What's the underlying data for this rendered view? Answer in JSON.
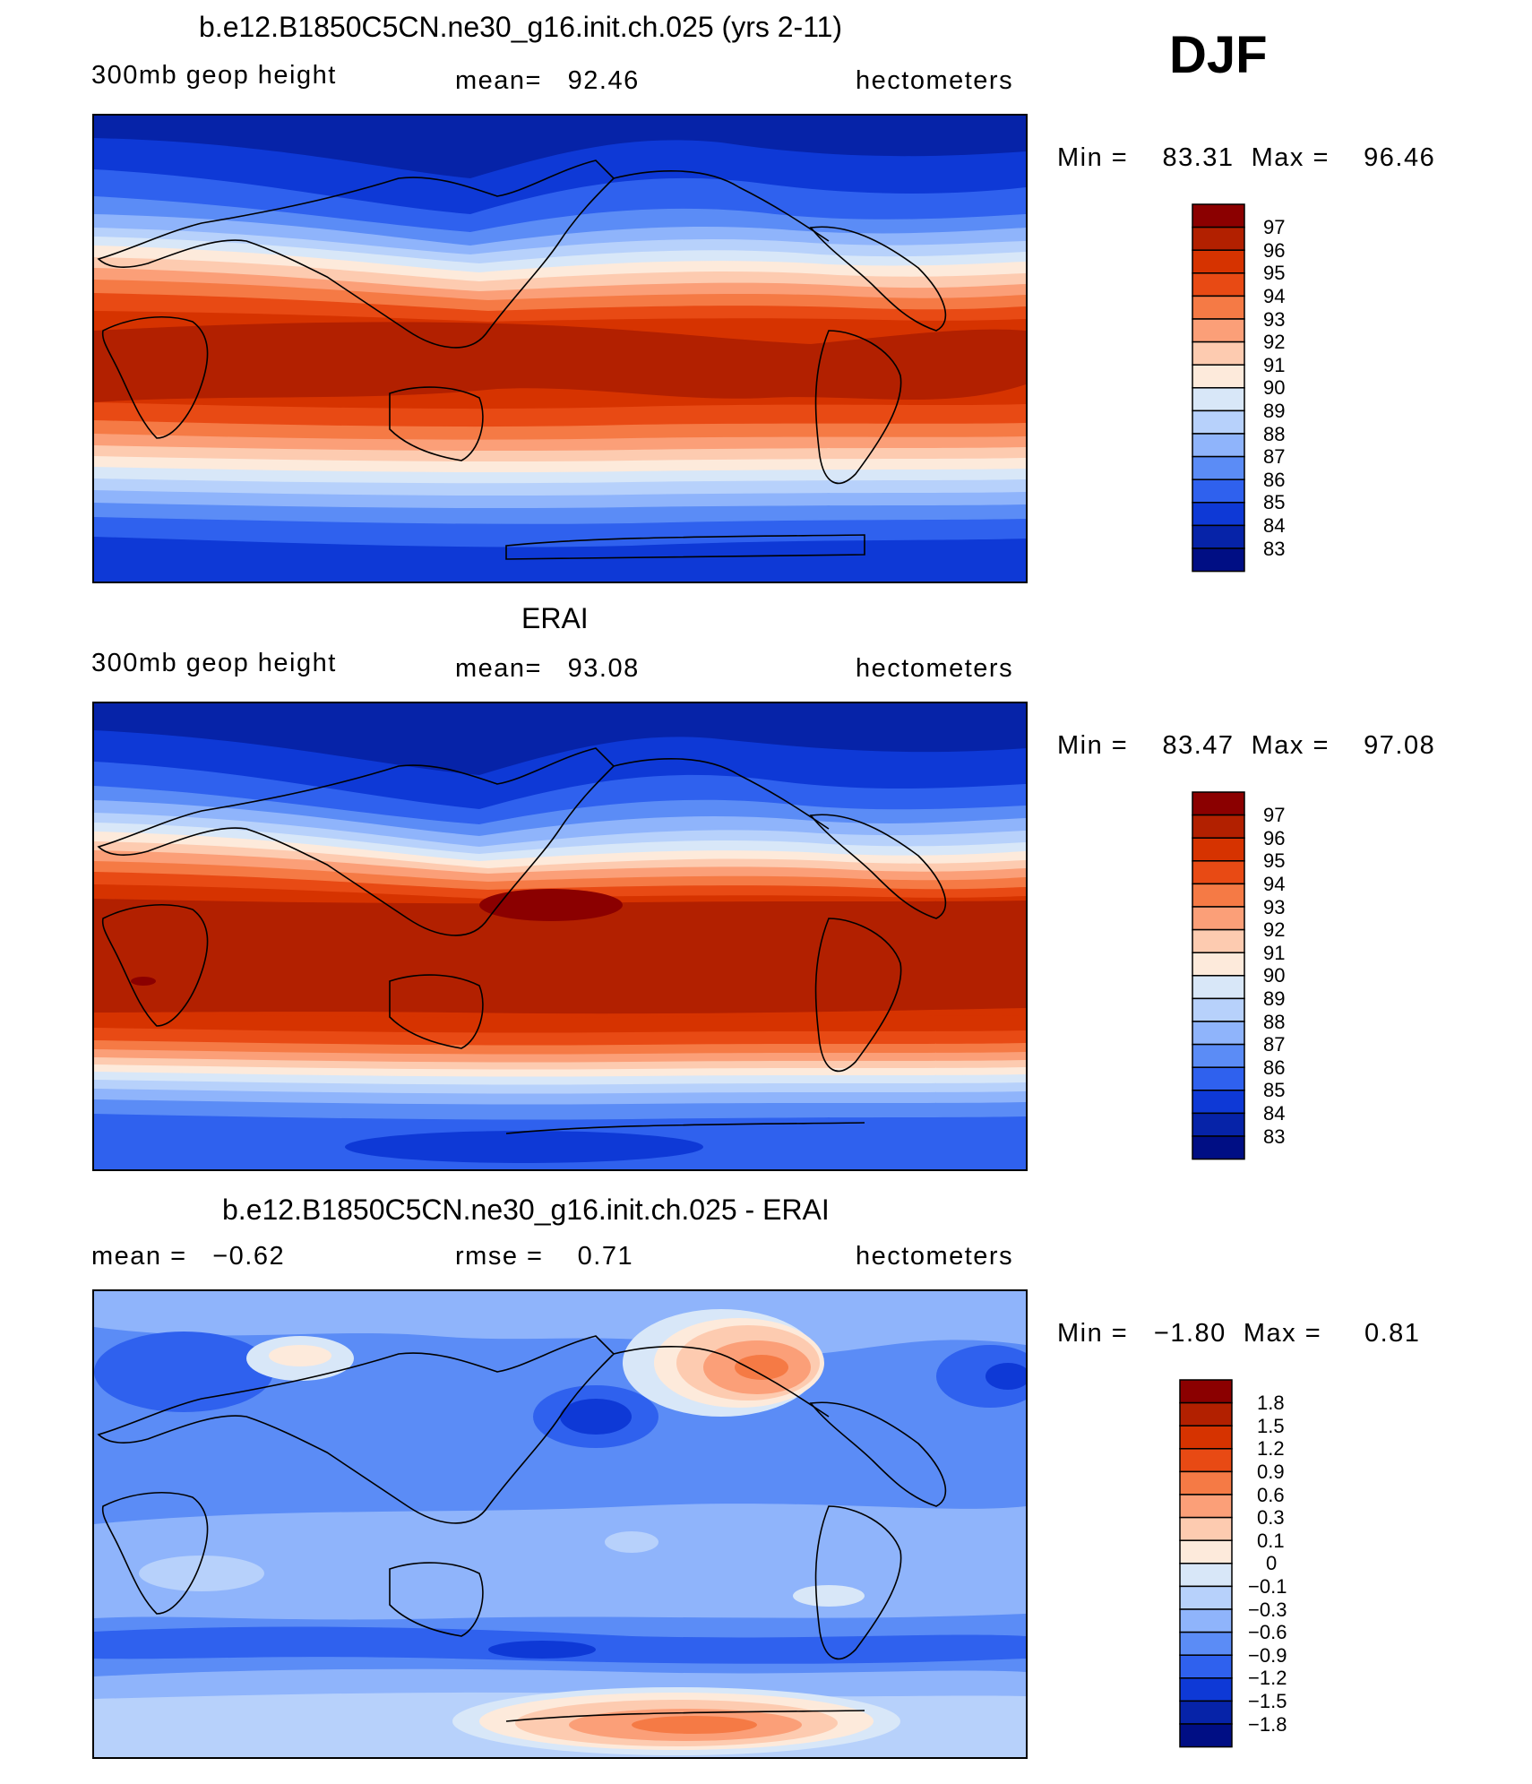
{
  "season": "DJF",
  "panels": [
    {
      "id": "model",
      "title": "b.e12.B1850C5CN.ne30_g16.init.ch.025 (yrs 2-11)",
      "left_label": "300mb geop height",
      "center_label": "mean=   92.46",
      "right_label": "hectometers",
      "minmax": "Min =    83.31  Max =    96.46",
      "colorbar_labels": [
        "97",
        "96",
        "95",
        "94",
        "93",
        "92",
        "91",
        "90",
        "89",
        "88",
        "87",
        "86",
        "85",
        "84",
        "83"
      ]
    },
    {
      "id": "obs",
      "title": "ERAI",
      "left_label": "300mb geop height",
      "center_label": "mean=   93.08",
      "right_label": "hectometers",
      "minmax": "Min =    83.47  Max =    97.08",
      "colorbar_labels": [
        "97",
        "96",
        "95",
        "94",
        "93",
        "92",
        "91",
        "90",
        "89",
        "88",
        "87",
        "86",
        "85",
        "84",
        "83"
      ]
    },
    {
      "id": "diff",
      "title": "b.e12.B1850C5CN.ne30_g16.init.ch.025 - ERAI",
      "left_label": "mean =   −0.62",
      "center_label": "rmse =    0.71",
      "right_label": "hectometers",
      "minmax": "Min =   −1.80  Max =     0.81",
      "colorbar_labels": [
        "1.8",
        "1.5",
        "1.2",
        "0.9",
        "0.6",
        "0.3",
        "0.1",
        "0",
        "−0.1",
        "−0.3",
        "−0.6",
        "−0.9",
        "−1.2",
        "−1.5",
        "−1.8"
      ]
    }
  ],
  "colors": {
    "abs_scale": [
      "#8b0000",
      "#b22000",
      "#d63300",
      "#e84a14",
      "#f57a45",
      "#fb9f78",
      "#fdcbb0",
      "#fdeadb",
      "#d8e7f8",
      "#b7d1fb",
      "#8fb4fb",
      "#5b8cf6",
      "#2f61ee",
      "#0e39d6",
      "#0623a8",
      "#000e84"
    ],
    "diff_scale": [
      "#8b0000",
      "#b22000",
      "#d63300",
      "#e84a14",
      "#f57a45",
      "#fb9f78",
      "#fdcbb0",
      "#fdeadb",
      "#d8e7f8",
      "#b7d1fb",
      "#8fb4fb",
      "#5b8cf6",
      "#2f61ee",
      "#0e39d6",
      "#0623a8",
      "#000e84"
    ]
  }
}
